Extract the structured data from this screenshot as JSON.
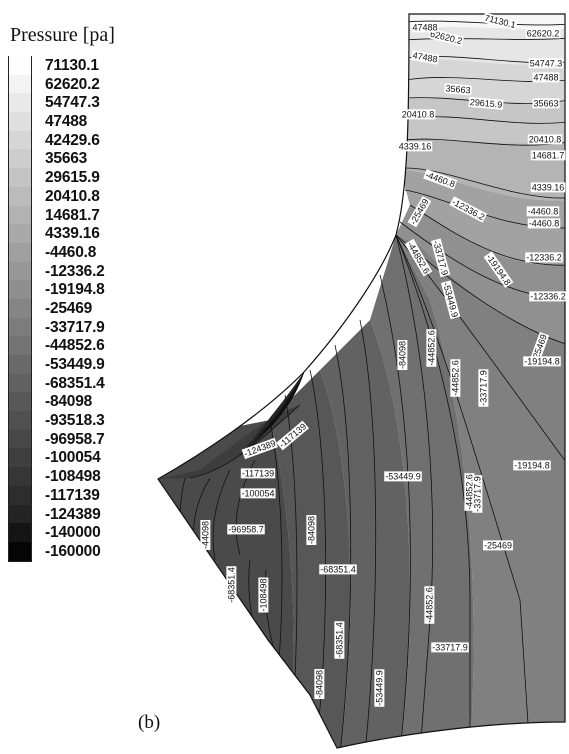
{
  "chart_data": {
    "type": "contour",
    "legend_title": "Pressure [pa]",
    "legend_levels": [
      "71130.1",
      "62620.2",
      "54747.3",
      "47488",
      "42429.6",
      "35663",
      "29615.9",
      "20410.8",
      "14681.7",
      "4339.16",
      "-4460.8",
      "-12336.2",
      "-19194.8",
      "-25469",
      "-33717.9",
      "-44852.6",
      "-53449.9",
      "-68351.4",
      "-84098",
      "-93518.3",
      "-96958.7",
      "-100054",
      "-108498",
      "-117139",
      "-124389",
      "-140000",
      "-160000"
    ],
    "legend_colors": [
      "#fdfdfd",
      "#f3f3f3",
      "#e9e9e9",
      "#dfdfdf",
      "#d6d6d6",
      "#cdcdcd",
      "#c4c4c4",
      "#bbbbbb",
      "#b2b2b2",
      "#a9a9a9",
      "#a0a0a0",
      "#979797",
      "#8e8e8e",
      "#858585",
      "#7c7c7c",
      "#737373",
      "#6a6a6a",
      "#616161",
      "#585858",
      "#505050",
      "#484848",
      "#3f3f3f",
      "#363636",
      "#2d2d2d",
      "#242424",
      "#151515",
      "#050505"
    ],
    "contour_labels": [
      "71130.1",
      "62620.2",
      "47488",
      "62620.2",
      "47488",
      "54747.3",
      "47488",
      "35663",
      "29615.9",
      "35663",
      "20410.8",
      "20410.8",
      "4339.16",
      "14681.7",
      "-4460.8",
      "-12336.2",
      "4339.16",
      "-25469",
      "-4460.8",
      "-4460.8",
      "-44852.6",
      "-33717.9",
      "-19194.8",
      "-12336.2",
      "-53449.9",
      "-12336.2",
      "-44852.6",
      "-84098",
      "-25469",
      "-19194.8",
      "-44852.6",
      "-33717.9",
      "-124389",
      "-117139",
      "-117139",
      "-53449.9",
      "-44852.6",
      "-33717.9",
      "-19194.8",
      "-100054",
      "-84098",
      "-96958.7",
      "-44098",
      "-25469",
      "-68351.4",
      "-108498",
      "-68351.4",
      "-44852.6",
      "-33717.9",
      "-68351.4",
      "-84098",
      "-53449.9"
    ],
    "panel_label": "(b)"
  }
}
